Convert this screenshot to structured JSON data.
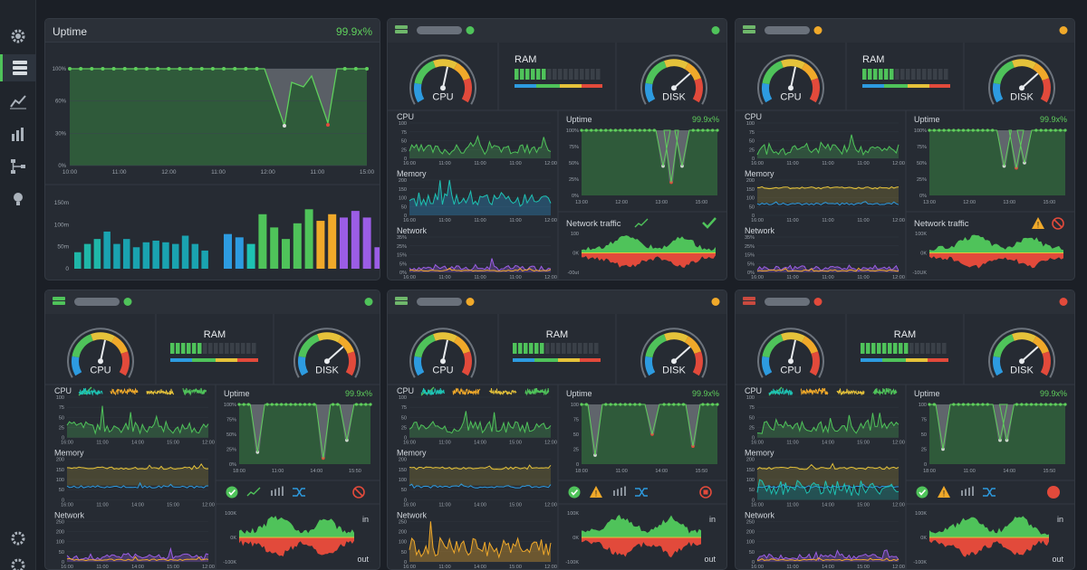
{
  "colors": {
    "ok": "#4fc35a",
    "warn": "#f0a92a",
    "error": "#e24a3b",
    "blue": "#2d9be0",
    "purple": "#9b5de5",
    "teal": "#1ec2b3",
    "yellow": "#e5c23a"
  },
  "sidebar": {
    "icons": [
      "gear-icon",
      "server-icon",
      "line-chart-icon",
      "bar-chart-icon",
      "network-icon",
      "bulb-icon",
      "settings-bottom-icon",
      "gear-bottom-icon"
    ]
  },
  "summary": {
    "title": "Uptime",
    "percent": "99.9x%",
    "y_ticks": [
      "100%",
      "60%",
      "30%",
      "0%"
    ],
    "x_ticks": [
      "10:00",
      "11:00",
      "12:00",
      "11:00",
      "12:00",
      "11:00",
      "15:00"
    ],
    "bar_ticks": [
      "150m",
      "100m",
      "50m",
      "0"
    ]
  },
  "labels": {
    "cpu_gauge": "CPU",
    "disk_gauge": "DISK",
    "ram": "RAM",
    "cpu": "CPU",
    "memory": "Memory",
    "network": "Network",
    "uptime": "Uptime",
    "uptime_pct": "99.9x%",
    "net_traffic": "Network traffic",
    "in": "in",
    "out": "out"
  },
  "ticks": {
    "cpu_y": [
      "100",
      "75",
      "50",
      "25",
      "0"
    ],
    "mem_y": [
      "200",
      "150",
      "100",
      "50",
      "0"
    ],
    "net_y": [
      "35%",
      "25%",
      "15%",
      "5%",
      "0%"
    ],
    "net_y2": [
      "250",
      "200",
      "100",
      "50",
      "0"
    ],
    "up_y": [
      "100%",
      "75%",
      "50%",
      "25%",
      "0%"
    ],
    "up_y2": [
      "100",
      "75",
      "50",
      "25",
      "0"
    ],
    "x_row1": [
      "16:00",
      "11:00",
      "11:00",
      "11:00",
      "12:00"
    ],
    "x_row2": [
      "16:00",
      "11:00",
      "14:00",
      "15:00",
      "12:00"
    ],
    "up_x1": [
      "13:00",
      "12:00",
      "13:00",
      "15:00"
    ],
    "up_x2": [
      "18:00",
      "11:00",
      "14:00",
      "15:50"
    ],
    "nt_y1": [
      "100",
      "0K",
      "-00ut"
    ],
    "nt_y1b": [
      "100K",
      "0K",
      "-10UK"
    ],
    "nt_y2": [
      "100K",
      "0K",
      "-100K"
    ]
  },
  "server_cards": [
    {
      "status": "ok",
      "ram_level": 0.35,
      "traffic_icon": "check"
    },
    {
      "status": "warn",
      "ram_level": 0.35,
      "traffic_icon": "warn-block"
    },
    {
      "status": "ok",
      "ram_level": 0.35,
      "traffic_icon": "io"
    },
    {
      "status": "warn",
      "ram_level": 0.35,
      "traffic_icon": "io"
    },
    {
      "status": "error",
      "ram_level": 0.55,
      "traffic_icon": "io"
    }
  ]
}
